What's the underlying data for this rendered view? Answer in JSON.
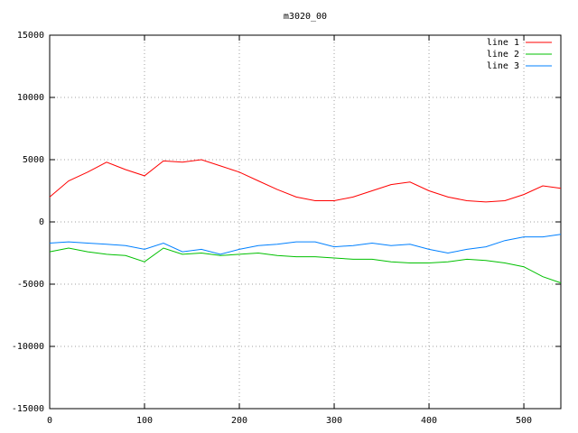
{
  "chart_data": {
    "type": "line",
    "title": "m3020_00",
    "x": [
      0,
      20,
      40,
      60,
      80,
      100,
      120,
      140,
      160,
      180,
      200,
      220,
      240,
      260,
      280,
      300,
      320,
      340,
      360,
      380,
      400,
      420,
      440,
      460,
      480,
      500,
      520,
      539
    ],
    "series": [
      {
        "name": "line 1",
        "color": "#ff0000",
        "values": [
          2000,
          3300,
          4000,
          4800,
          4200,
          3700,
          4900,
          4800,
          5000,
          4500,
          4000,
          3300,
          2600,
          2000,
          1700,
          1700,
          2000,
          2500,
          3000,
          3200,
          2500,
          2000,
          1700,
          1600,
          1700,
          2200,
          2900,
          2700
        ]
      },
      {
        "name": "line 2",
        "color": "#00c000",
        "values": [
          -2400,
          -2100,
          -2400,
          -2600,
          -2700,
          -3200,
          -2100,
          -2600,
          -2500,
          -2700,
          -2600,
          -2500,
          -2700,
          -2800,
          -2800,
          -2900,
          -3000,
          -3000,
          -3200,
          -3300,
          -3300,
          -3200,
          -3000,
          -3100,
          -3300,
          -3600,
          -4400,
          -4900
        ]
      },
      {
        "name": "line 3",
        "color": "#0080ff",
        "values": [
          -1700,
          -1600,
          -1700,
          -1800,
          -1900,
          -2200,
          -1700,
          -2400,
          -2200,
          -2600,
          -2200,
          -1900,
          -1800,
          -1600,
          -1600,
          -2000,
          -1900,
          -1700,
          -1900,
          -1800,
          -2200,
          -2500,
          -2200,
          -2000,
          -1500,
          -1200,
          -1200,
          -1000
        ]
      }
    ],
    "xlim": [
      0,
      539
    ],
    "xticks": [
      0,
      100,
      200,
      300,
      400,
      500
    ],
    "ylim": [
      -15000,
      15000
    ],
    "yticks": [
      -15000,
      -10000,
      -5000,
      0,
      5000,
      10000,
      15000
    ],
    "grid": true,
    "legend": "top-right"
  }
}
